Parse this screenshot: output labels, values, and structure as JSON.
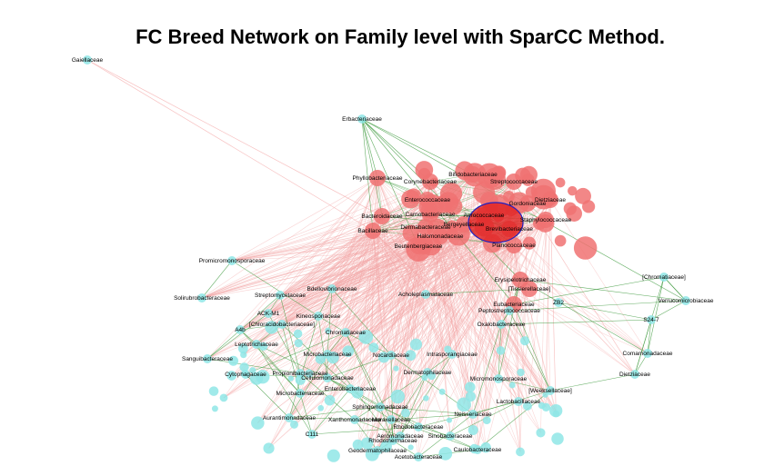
{
  "title": "FC Breed Network on Family level with SparCC Method.",
  "colors": {
    "positive_edge": "#3d9a3d",
    "negative_edge": "#f4a6a6",
    "red_node": "#f07272",
    "red_core": "#e02020",
    "cyan_node": "#8fe6e6",
    "hub_outline": "#2020c0"
  },
  "labels": [
    "Gaiellaceae",
    "Erbacteriaceae",
    "Bifidobacteriaceae",
    "Phyllobacteriaceae",
    "Corynebacteriaceae",
    "Streptococcaceae",
    "Enterococcaceae",
    "Bacillaceae",
    "Dietziaceae",
    "Aerococcaceae",
    "Halomonadaceae",
    "Planococcaceae",
    "Bacteroidaceae",
    "Carnobacteriaceae",
    "Dermabacteraceae",
    "Bergeyellaceae",
    "Gordoniaceae",
    "Staphylococcaceae",
    "Brevibacteriaceae",
    "Promicromonosporaceae",
    "Beutenbergiaceae",
    "Erysipelotrichaceae",
    "[Tissierellaceae]",
    "Bdellovibrionaceae",
    "Streptomycetaceae",
    "Solirubrobacteraceae",
    "Acholeplasmataceae",
    "Eubacteriaceae",
    "ACK-M1",
    "Kineosporiaceae",
    "[Chloracidobacteriaceae]",
    "Peptostreptococcaceae",
    "ZB2",
    "Oxalobacteraceae",
    "A4b",
    "Verrucomicrobiaceae",
    "S24-7",
    "[Chromatiaceae]",
    "Leptotrichiaceae",
    "Chromatiaceae",
    "Sanguibacteraceae",
    "Cytophagaceae",
    "Comamonadaceae",
    "Dietziaceae",
    "Propionibacteriaceae",
    "Nocardiaceae",
    "Microbacteriaceae",
    "Micromonosporaceae",
    "Intrasporangiaceae",
    "Microbacteriaceae",
    "Enterobacteriaceae",
    "Cellulomonadaceae",
    "Dermatophilaceae",
    "[Weeksellaceae]",
    "Lactobacillaceae",
    "Aurantimonadaceae",
    "Xanthomonadaceae",
    "Moraxellaceae",
    "Rhodobacteraceae",
    "Neisseriaceae",
    "Aeromonadaceae",
    "Sphingomonadaceae",
    "C111",
    "Rhodothermaceae",
    "Geodermatophilaceae",
    "Acetobacteraceae",
    "Sinobacteraceae",
    "Caulobacteraceae"
  ]
}
